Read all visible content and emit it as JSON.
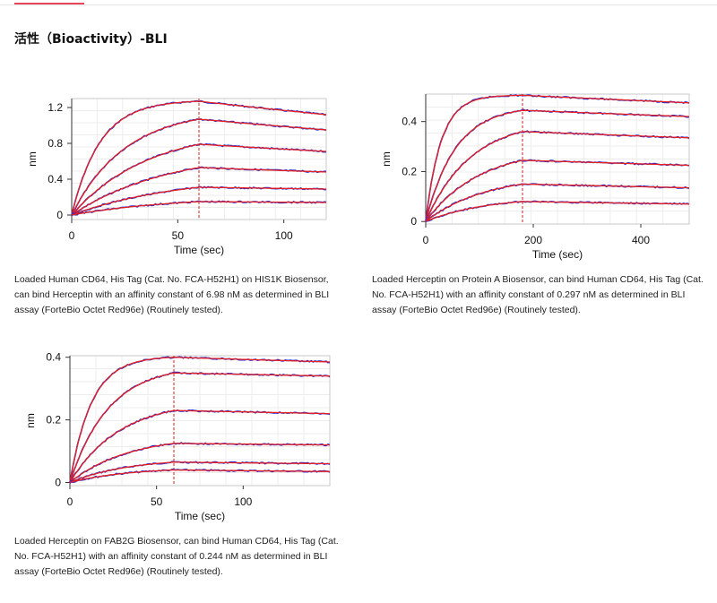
{
  "page": {
    "section_title": "活性（Bioactivity）-BLI"
  },
  "charts": [
    {
      "caption": "Loaded Human CD64, His Tag (Cat. No. FCA-H52H1) on HIS1K Biosensor, can bind Herceptin with an affinity constant of 6.98 nM as determined in BLI assay (ForteBio Octet Red96e) (Routinely tested).",
      "chart_data": {
        "type": "line",
        "title": "",
        "xlabel": "Time (sec)",
        "ylabel": "nm",
        "xlim": [
          0,
          120
        ],
        "ylim": [
          -0.05,
          1.3
        ],
        "xticks": [
          0,
          50,
          100
        ],
        "yticks": [
          0,
          0.4,
          0.8,
          1.2
        ],
        "ytick_labels": [
          "0",
          "0.4",
          "0.8",
          "1.2"
        ],
        "grid": true,
        "dissociation_start": 60,
        "colors": {
          "data": "#1c2bd8",
          "fit": "#e82020"
        },
        "series": [
          {
            "assoc_end": 1.27,
            "dissoc_end": 1.12,
            "k": 0.075
          },
          {
            "assoc_end": 1.07,
            "dissoc_end": 0.95,
            "k": 0.04
          },
          {
            "assoc_end": 0.79,
            "dissoc_end": 0.71,
            "k": 0.028
          },
          {
            "assoc_end": 0.53,
            "dissoc_end": 0.48,
            "k": 0.022
          },
          {
            "assoc_end": 0.31,
            "dissoc_end": 0.29,
            "k": 0.02
          },
          {
            "assoc_end": 0.15,
            "dissoc_end": 0.14,
            "k": 0.02
          }
        ]
      }
    },
    {
      "caption": "Loaded Herceptin on Protein A Biosensor, can bind Human CD64, His Tag (Cat. No. FCA-H52H1) with an affinity constant of 0.297 nM as determined in BLI assay (ForteBio Octet Red96e) (Routinely tested).",
      "chart_data": {
        "type": "line",
        "title": "",
        "xlabel": "Time (sec)",
        "ylabel": "nm",
        "xlim": [
          0,
          490
        ],
        "ylim": [
          -0.01,
          0.51
        ],
        "xticks": [
          0,
          200,
          400
        ],
        "yticks": [
          0,
          0.2,
          0.4
        ],
        "ytick_labels": [
          "0",
          "0.2",
          "0.4"
        ],
        "grid": true,
        "dissociation_start": 180,
        "colors": {
          "data": "#1c2bd8",
          "fit": "#e82020"
        },
        "series": [
          {
            "assoc_end": 0.505,
            "dissoc_end": 0.475,
            "k": 0.035
          },
          {
            "assoc_end": 0.445,
            "dissoc_end": 0.42,
            "k": 0.018
          },
          {
            "assoc_end": 0.36,
            "dissoc_end": 0.335,
            "k": 0.012
          },
          {
            "assoc_end": 0.245,
            "dissoc_end": 0.225,
            "k": 0.01
          },
          {
            "assoc_end": 0.15,
            "dissoc_end": 0.135,
            "k": 0.009
          },
          {
            "assoc_end": 0.08,
            "dissoc_end": 0.07,
            "k": 0.009
          }
        ]
      }
    },
    {
      "caption": "Loaded Herceptin on FAB2G Biosensor, can bind Human CD64, His Tag (Cat. No. FCA-H52H1) with an affinity constant of 0.244 nM as determined in BLI assay (ForteBio Octet Red96e) (Routinely tested).",
      "chart_data": {
        "type": "line",
        "title": "",
        "xlabel": "Time (sec)",
        "ylabel": "nm",
        "xlim": [
          0,
          150
        ],
        "ylim": [
          -0.01,
          0.405
        ],
        "xticks": [
          0,
          50,
          100
        ],
        "yticks": [
          0,
          0.2,
          0.4
        ],
        "ytick_labels": [
          "0",
          "0.2",
          "0.4"
        ],
        "grid": true,
        "dissociation_start": 60,
        "colors": {
          "data": "#1c2bd8",
          "fit": "#e82020"
        },
        "series": [
          {
            "assoc_end": 0.4,
            "dissoc_end": 0.385,
            "k": 0.08
          },
          {
            "assoc_end": 0.35,
            "dissoc_end": 0.34,
            "k": 0.045
          },
          {
            "assoc_end": 0.23,
            "dissoc_end": 0.22,
            "k": 0.035
          },
          {
            "assoc_end": 0.125,
            "dissoc_end": 0.12,
            "k": 0.03
          },
          {
            "assoc_end": 0.065,
            "dissoc_end": 0.06,
            "k": 0.03
          },
          {
            "assoc_end": 0.04,
            "dissoc_end": 0.035,
            "k": 0.03
          }
        ]
      }
    }
  ]
}
